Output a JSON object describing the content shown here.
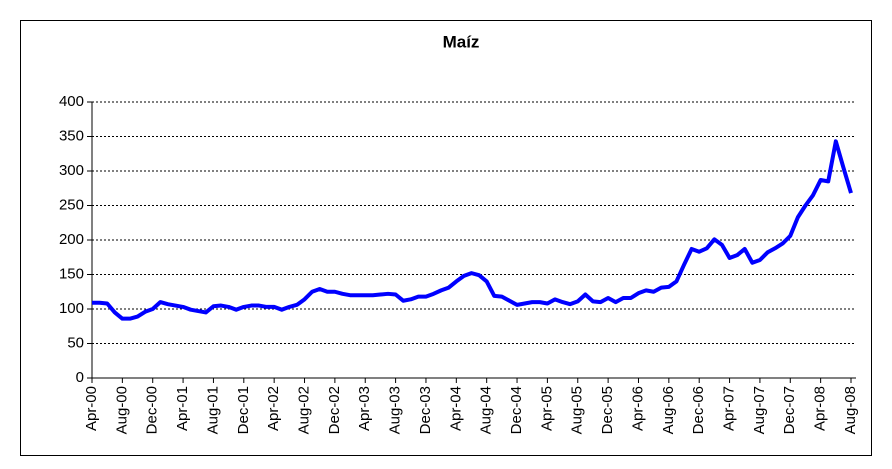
{
  "chart_data": {
    "type": "line",
    "title": "Maíz",
    "categories": [
      "Apr-00",
      null,
      null,
      null,
      "Aug-00",
      null,
      null,
      null,
      "Dec-00",
      null,
      null,
      null,
      "Apr-01",
      null,
      null,
      null,
      "Aug-01",
      null,
      null,
      null,
      "Dec-01",
      null,
      null,
      null,
      "Apr-02",
      null,
      null,
      null,
      "Aug-02",
      null,
      null,
      null,
      "Dec-02",
      null,
      null,
      null,
      "Apr-03",
      null,
      null,
      null,
      "Aug-03",
      null,
      null,
      null,
      "Dec-03",
      null,
      null,
      null,
      "Apr-04",
      null,
      null,
      null,
      "Aug-04",
      null,
      null,
      null,
      "Dec-04",
      null,
      null,
      null,
      "Apr-05",
      null,
      null,
      null,
      "Aug-05",
      null,
      null,
      null,
      "Dec-05",
      null,
      null,
      null,
      "Apr-06",
      null,
      null,
      null,
      "Aug-06",
      null,
      null,
      null,
      "Dec-06",
      null,
      null,
      null,
      "Apr-07",
      null,
      null,
      null,
      "Aug-07",
      null,
      null,
      null,
      "Dec-07",
      null,
      null,
      null,
      "Apr-08",
      null,
      null,
      null,
      "Aug-08"
    ],
    "series": [
      {
        "color": "#0000ff",
        "values": [
          109,
          109,
          108,
          95,
          86,
          86,
          89,
          96,
          100,
          110,
          107,
          105,
          103,
          99,
          97,
          95,
          104,
          105,
          103,
          99,
          103,
          105,
          105,
          103,
          103,
          99,
          103,
          106,
          114,
          125,
          129,
          125,
          125,
          122,
          120,
          120,
          120,
          120,
          121,
          122,
          121,
          112,
          114,
          118,
          118,
          122,
          127,
          131,
          140,
          148,
          152,
          149,
          140,
          119,
          118,
          112,
          106,
          108,
          110,
          110,
          108,
          114,
          110,
          107,
          111,
          121,
          111,
          110,
          116,
          110,
          116,
          116,
          123,
          127,
          125,
          131,
          132,
          140,
          164,
          187,
          183,
          188,
          201,
          193,
          174,
          178,
          187,
          167,
          171,
          182,
          188,
          195,
          206,
          233,
          250,
          265,
          287,
          285,
          343,
          305,
          268
        ]
      }
    ],
    "ylim": [
      0,
      400
    ],
    "yticks": [
      0,
      50,
      100,
      150,
      200,
      250,
      300,
      350,
      400
    ],
    "grid": true
  }
}
